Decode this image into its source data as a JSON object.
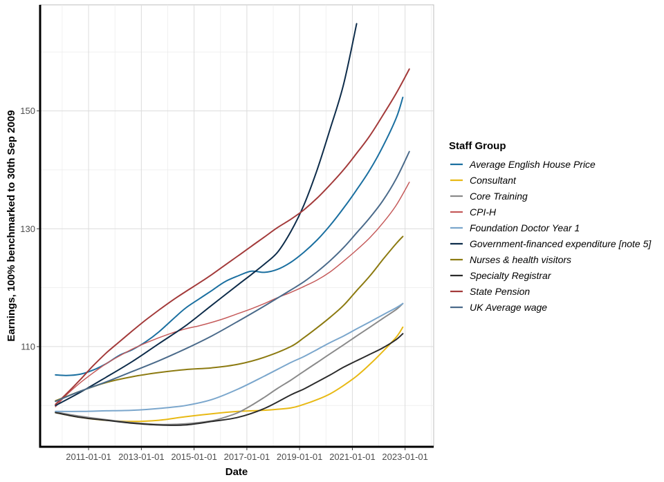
{
  "chart_data": {
    "type": "line",
    "xlabel": "Date",
    "ylabel": "Earnings, 100% benchmarked to 30th Sep 2009",
    "x_ticks": [
      "2011-01-01",
      "2013-01-01",
      "2015-01-01",
      "2017-01-01",
      "2019-01-01",
      "2021-01-01",
      "2023-01-01"
    ],
    "y_ticks": [
      110,
      130,
      150
    ],
    "xlim": [
      "2009-03-01",
      "2024-02-01"
    ],
    "ylim": [
      93,
      168
    ],
    "grid": true,
    "legend": {
      "title": "Staff Group",
      "placement": "right"
    },
    "series": [
      {
        "name": "Average English House Price",
        "color": "#1a6fa0",
        "stroke_width": 2,
        "x": [
          "2009-09-30",
          "2010-03-01",
          "2010-09-01",
          "2011-03-01",
          "2011-09-01",
          "2012-03-01",
          "2012-09-01",
          "2013-03-01",
          "2013-09-01",
          "2014-03-01",
          "2014-09-01",
          "2015-03-01",
          "2015-09-01",
          "2016-03-01",
          "2016-09-01",
          "2017-03-01",
          "2017-09-01",
          "2018-03-01",
          "2018-09-01",
          "2019-03-01",
          "2019-09-01",
          "2020-03-01",
          "2020-09-01",
          "2021-03-01",
          "2021-09-01",
          "2022-03-01",
          "2022-09-01",
          "2022-12-01"
        ],
        "y": [
          105.2,
          105.1,
          105.3,
          106.0,
          107.1,
          108.5,
          109.5,
          110.8,
          112.5,
          114.5,
          116.5,
          118.0,
          119.5,
          121.0,
          122.0,
          122.8,
          122.6,
          123.1,
          124.3,
          126.0,
          128.1,
          130.6,
          133.5,
          136.6,
          140.0,
          144.0,
          148.8,
          152.3
        ]
      },
      {
        "name": "Consultant",
        "color": "#e8b914",
        "stroke_width": 2,
        "x": [
          "2009-09-30",
          "2010-09-01",
          "2011-09-01",
          "2012-09-01",
          "2013-09-01",
          "2014-09-01",
          "2015-09-01",
          "2016-09-01",
          "2017-09-01",
          "2018-09-01",
          "2019-03-01",
          "2019-09-01",
          "2020-03-01",
          "2020-09-01",
          "2021-03-01",
          "2021-09-01",
          "2022-03-01",
          "2022-09-01",
          "2022-12-01"
        ],
        "y": [
          98.8,
          98.0,
          97.5,
          97.3,
          97.5,
          98.1,
          98.6,
          99.0,
          99.2,
          99.6,
          100.2,
          101.0,
          102.0,
          103.4,
          105.0,
          107.0,
          109.2,
          111.6,
          113.3
        ]
      },
      {
        "name": "Core Training",
        "color": "#8a8a8a",
        "stroke_width": 2,
        "x": [
          "2009-09-30",
          "2010-09-01",
          "2011-09-01",
          "2012-09-01",
          "2013-09-01",
          "2014-09-01",
          "2015-09-01",
          "2016-03-01",
          "2016-09-01",
          "2017-03-01",
          "2017-09-01",
          "2018-03-01",
          "2018-09-01",
          "2019-03-01",
          "2019-09-01",
          "2020-03-01",
          "2020-09-01",
          "2021-03-01",
          "2021-09-01",
          "2022-03-01",
          "2022-09-01",
          "2022-12-01"
        ],
        "y": [
          98.9,
          98.2,
          97.6,
          97.1,
          96.8,
          96.9,
          97.4,
          98.0,
          98.8,
          100.0,
          101.4,
          102.9,
          104.3,
          105.8,
          107.3,
          108.8,
          110.3,
          111.8,
          113.3,
          114.8,
          116.3,
          117.3
        ]
      },
      {
        "name": "CPI-H",
        "color": "#c55a5a",
        "stroke_width": 1.5,
        "x": [
          "2009-09-30",
          "2010-03-01",
          "2010-09-01",
          "2011-03-01",
          "2011-09-01",
          "2012-03-01",
          "2012-09-01",
          "2013-03-01",
          "2013-09-01",
          "2014-03-01",
          "2014-09-01",
          "2015-03-01",
          "2015-09-01",
          "2016-03-01",
          "2016-09-01",
          "2017-03-01",
          "2017-09-01",
          "2018-03-01",
          "2018-09-01",
          "2019-03-01",
          "2019-09-01",
          "2020-03-01",
          "2020-09-01",
          "2021-03-01",
          "2021-09-01",
          "2022-03-01",
          "2022-09-01",
          "2023-03-01"
        ],
        "y": [
          99.8,
          101.8,
          103.8,
          105.5,
          107.1,
          108.4,
          109.6,
          110.6,
          111.5,
          112.3,
          113.0,
          113.5,
          114.1,
          114.8,
          115.6,
          116.4,
          117.3,
          118.3,
          119.2,
          120.2,
          121.3,
          122.7,
          124.5,
          126.4,
          128.5,
          131.0,
          134.0,
          137.9
        ]
      },
      {
        "name": "Foundation Doctor Year 1",
        "color": "#7aa6cc",
        "stroke_width": 2,
        "x": [
          "2009-09-30",
          "2010-09-01",
          "2011-09-01",
          "2012-09-01",
          "2013-09-01",
          "2014-09-01",
          "2015-09-01",
          "2016-09-01",
          "2017-09-01",
          "2018-09-01",
          "2019-03-01",
          "2019-09-01",
          "2020-03-01",
          "2020-09-01",
          "2021-03-01",
          "2021-09-01",
          "2022-03-01",
          "2022-09-01",
          "2022-12-01"
        ],
        "y": [
          99.0,
          99.0,
          99.1,
          99.2,
          99.5,
          100.0,
          101.0,
          102.8,
          105.0,
          107.3,
          108.3,
          109.5,
          110.7,
          111.8,
          113.0,
          114.2,
          115.4,
          116.6,
          117.3
        ]
      },
      {
        "name": "Government-financed expenditure [note 5]",
        "color": "#0d2c4a",
        "stroke_width": 2,
        "x": [
          "2009-09-30",
          "2010-09-01",
          "2011-09-01",
          "2012-09-01",
          "2013-09-01",
          "2014-09-01",
          "2015-09-01",
          "2016-09-01",
          "2017-03-01",
          "2017-09-01",
          "2018-03-01",
          "2018-09-01",
          "2019-03-01",
          "2019-09-01",
          "2020-03-01",
          "2020-09-01",
          "2021-03-01"
        ],
        "y": [
          100.0,
          102.2,
          104.8,
          107.5,
          110.5,
          113.5,
          117.0,
          120.5,
          122.2,
          124.0,
          126.0,
          129.5,
          134.0,
          140.0,
          147.0,
          154.5,
          164.8
        ]
      },
      {
        "name": "Nurses & health visitors",
        "color": "#8c7a10",
        "stroke_width": 2,
        "x": [
          "2009-09-30",
          "2010-09-01",
          "2011-09-01",
          "2012-09-01",
          "2013-09-01",
          "2014-09-01",
          "2015-09-01",
          "2016-09-01",
          "2017-09-01",
          "2018-09-01",
          "2019-03-01",
          "2019-09-01",
          "2020-03-01",
          "2020-09-01",
          "2021-03-01",
          "2021-09-01",
          "2022-03-01",
          "2022-09-01",
          "2022-12-01"
        ],
        "y": [
          100.8,
          102.4,
          103.9,
          104.9,
          105.6,
          106.1,
          106.4,
          107.0,
          108.2,
          110.0,
          111.5,
          113.2,
          115.0,
          117.0,
          119.5,
          122.0,
          124.8,
          127.5,
          128.7
        ]
      },
      {
        "name": "Specialty Registrar",
        "color": "#2b2b2b",
        "stroke_width": 2,
        "x": [
          "2009-09-30",
          "2010-09-01",
          "2011-09-01",
          "2012-09-01",
          "2013-09-01",
          "2014-09-01",
          "2015-09-01",
          "2016-09-01",
          "2017-09-01",
          "2018-09-01",
          "2019-03-01",
          "2019-09-01",
          "2020-03-01",
          "2020-09-01",
          "2021-03-01",
          "2021-09-01",
          "2022-03-01",
          "2022-09-01",
          "2022-12-01"
        ],
        "y": [
          98.8,
          98.0,
          97.5,
          97.0,
          96.7,
          96.7,
          97.3,
          98.0,
          99.5,
          101.8,
          102.8,
          104.0,
          105.2,
          106.5,
          107.6,
          108.7,
          109.8,
          111.2,
          112.2
        ]
      },
      {
        "name": "State Pension",
        "color": "#a33a3a",
        "stroke_width": 2,
        "x": [
          "2009-09-30",
          "2010-03-01",
          "2010-09-01",
          "2011-03-01",
          "2011-09-01",
          "2012-03-01",
          "2012-09-01",
          "2013-03-01",
          "2013-09-01",
          "2014-03-01",
          "2014-09-01",
          "2015-03-01",
          "2015-09-01",
          "2016-03-01",
          "2016-09-01",
          "2017-03-01",
          "2017-09-01",
          "2018-03-01",
          "2018-09-01",
          "2019-03-01",
          "2019-09-01",
          "2020-03-01",
          "2020-09-01",
          "2021-03-01",
          "2021-09-01",
          "2022-03-01",
          "2022-09-01",
          "2023-03-01"
        ],
        "y": [
          100.2,
          102.0,
          104.3,
          106.7,
          108.9,
          110.8,
          112.7,
          114.5,
          116.2,
          117.8,
          119.3,
          120.7,
          122.2,
          123.8,
          125.4,
          127.0,
          128.6,
          130.2,
          131.6,
          133.2,
          135.2,
          137.5,
          140.0,
          142.8,
          145.8,
          149.3,
          153.0,
          157.1
        ]
      },
      {
        "name": "UK Average wage",
        "color": "#4a6a8a",
        "stroke_width": 2,
        "x": [
          "2009-09-30",
          "2010-09-01",
          "2011-09-01",
          "2012-09-01",
          "2013-09-01",
          "2014-09-01",
          "2015-09-01",
          "2016-09-01",
          "2017-09-01",
          "2018-09-01",
          "2019-03-01",
          "2019-09-01",
          "2020-03-01",
          "2020-09-01",
          "2021-03-01",
          "2021-09-01",
          "2022-03-01",
          "2022-09-01",
          "2023-03-01"
        ],
        "y": [
          100.7,
          102.4,
          104.0,
          105.8,
          107.6,
          109.6,
          111.8,
          114.3,
          116.9,
          119.6,
          121.0,
          122.7,
          124.6,
          126.8,
          129.3,
          131.9,
          134.8,
          138.5,
          143.1
        ]
      }
    ]
  }
}
